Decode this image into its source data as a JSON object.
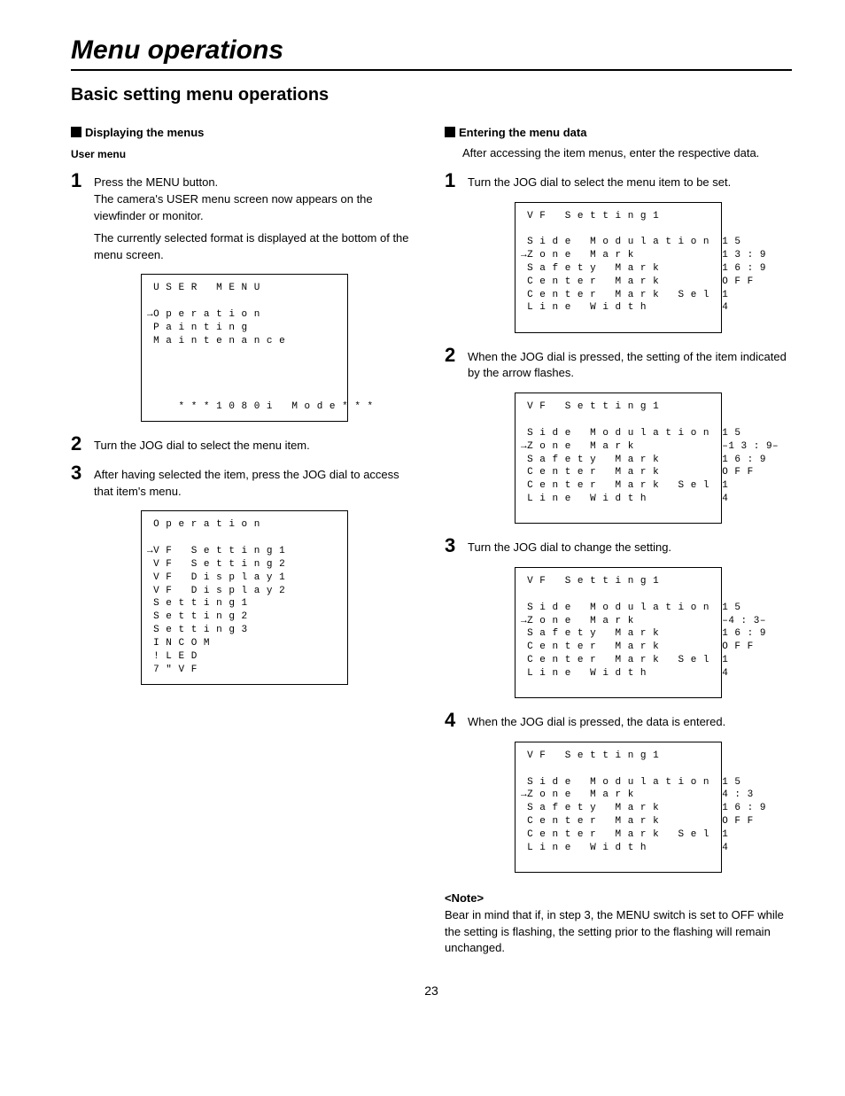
{
  "page": {
    "title": "Menu operations",
    "subtitle": "Basic setting menu operations",
    "page_number": "23"
  },
  "left": {
    "heading": "Displaying the menus",
    "user_menu_label": "User menu",
    "step1_a": "Press the MENU button.",
    "step1_b": "The camera's USER menu screen now appears on the viewfinder or monitor.",
    "step1_c": "The currently selected format is displayed at the bottom of the menu screen.",
    "screen1": {
      "title": "USER MENU",
      "items": [
        "→Operation",
        " Painting",
        " Maintenance"
      ],
      "footer": "***1080i Mode***"
    },
    "step2": "Turn the JOG dial to select the menu item.",
    "step3": "After having selected the item, press the JOG dial to access that item's menu.",
    "screen2": {
      "title": "Operation",
      "items": [
        "→VF Setting1",
        " VF Setting2",
        " VF Display1",
        " VF Display2",
        " Setting1",
        " Setting2",
        " Setting3",
        " INCOM",
        " !LED",
        " 7\"VF"
      ]
    }
  },
  "right": {
    "heading": "Entering the menu data",
    "intro": "After accessing the item menus, enter the respective data.",
    "step1": "Turn the JOG dial to select the menu item to be set.",
    "screenA": {
      "title": "VF Setting1",
      "rows": [
        {
          "arrow": " ",
          "label": "Side Modulation",
          "value": "15"
        },
        {
          "arrow": "→",
          "label": "Zone Mark",
          "value": "13:9"
        },
        {
          "arrow": " ",
          "label": "Safety Mark",
          "value": "16:9"
        },
        {
          "arrow": " ",
          "label": "Center Mark",
          "value": "OFF"
        },
        {
          "arrow": " ",
          "label": "Center Mark Sel",
          "value": "1"
        },
        {
          "arrow": " ",
          "label": "Line Width",
          "value": "4"
        }
      ]
    },
    "step2": "When the JOG dial is pressed, the setting of the item indicated by the arrow flashes.",
    "screenB": {
      "title": "VF Setting1",
      "rows": [
        {
          "arrow": " ",
          "label": "Side Modulation",
          "value": "15",
          "flash": true,
          "flash_pos": "top"
        },
        {
          "arrow": "→",
          "label": "Zone Mark",
          "value": "13:9",
          "flash": true,
          "flash_pos": "mid"
        },
        {
          "arrow": " ",
          "label": "Safety Mark",
          "value": "16:9",
          "flash": true,
          "flash_pos": "bot"
        },
        {
          "arrow": " ",
          "label": "Center Mark",
          "value": "OFF"
        },
        {
          "arrow": " ",
          "label": "Center Mark Sel",
          "value": "1"
        },
        {
          "arrow": " ",
          "label": "Line Width",
          "value": "4"
        }
      ]
    },
    "step3": "Turn the JOG dial to change the setting.",
    "screenC": {
      "title": "VF Setting1",
      "rows": [
        {
          "arrow": " ",
          "label": "Side Modulation",
          "value": "15",
          "flash": true,
          "flash_pos": "top"
        },
        {
          "arrow": "→",
          "label": "Zone Mark",
          "value": "4:3",
          "flash": true,
          "flash_pos": "mid"
        },
        {
          "arrow": " ",
          "label": "Safety Mark",
          "value": "16:9",
          "flash": true,
          "flash_pos": "bot"
        },
        {
          "arrow": " ",
          "label": "Center Mark",
          "value": "OFF"
        },
        {
          "arrow": " ",
          "label": "Center Mark Sel",
          "value": "1"
        },
        {
          "arrow": " ",
          "label": "Line Width",
          "value": "4"
        }
      ]
    },
    "step4": "When the JOG dial is pressed, the data is entered.",
    "screenD": {
      "title": "VF Setting1",
      "rows": [
        {
          "arrow": " ",
          "label": "Side Modulation",
          "value": "15"
        },
        {
          "arrow": "→",
          "label": "Zone Mark",
          "value": "4:3"
        },
        {
          "arrow": " ",
          "label": "Safety Mark",
          "value": "16:9"
        },
        {
          "arrow": " ",
          "label": "Center Mark",
          "value": "OFF"
        },
        {
          "arrow": " ",
          "label": "Center Mark Sel",
          "value": "1"
        },
        {
          "arrow": " ",
          "label": "Line Width",
          "value": "4"
        }
      ]
    },
    "note_head": "<Note>",
    "note_body": "Bear in mind that if, in step 3, the MENU switch is set to OFF while the setting is flashing, the setting prior to the flashing will remain unchanged."
  }
}
